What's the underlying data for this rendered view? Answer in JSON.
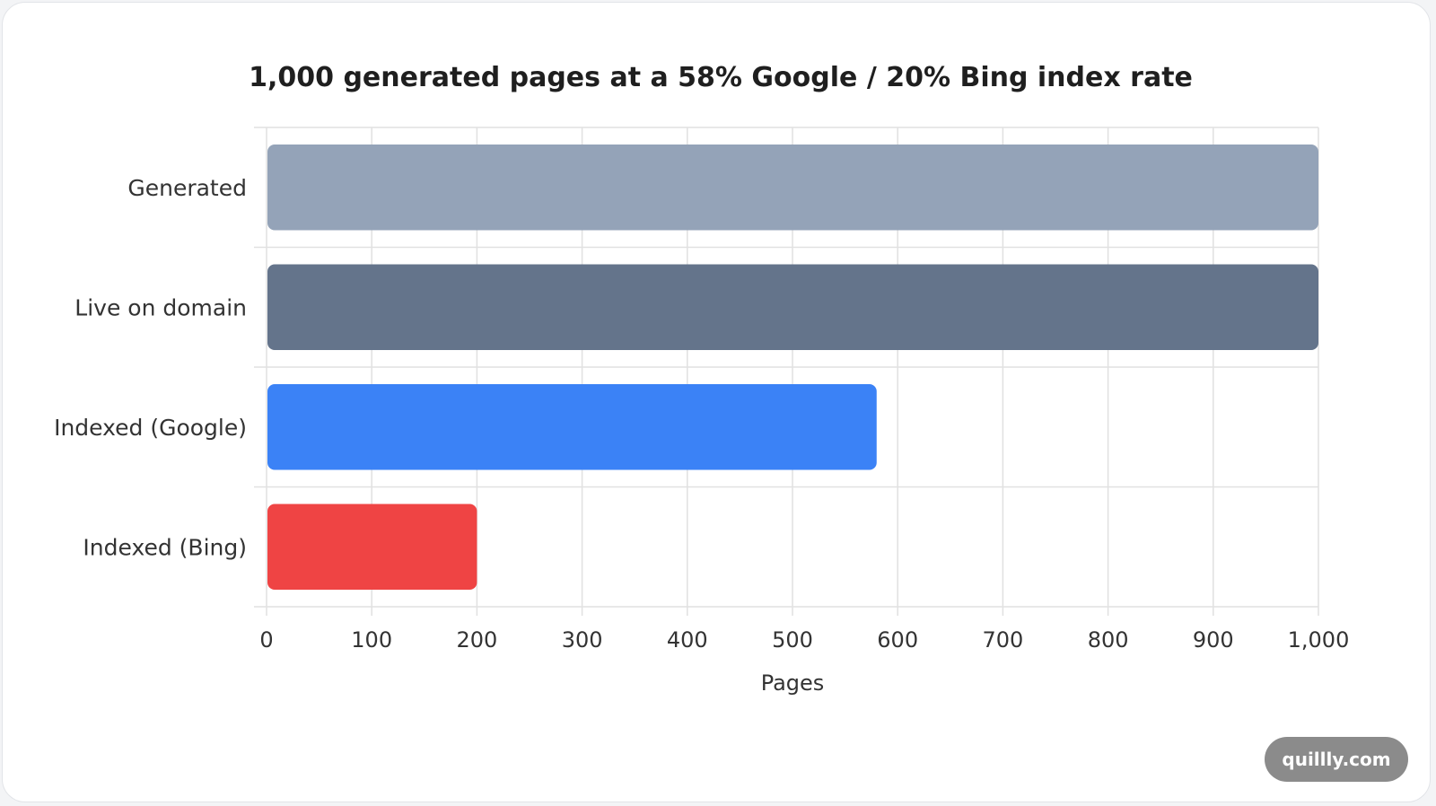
{
  "chart_data": {
    "type": "bar",
    "orientation": "horizontal",
    "title": "1,000 generated pages at a 58% Google / 20% Bing index rate",
    "xlabel": "Pages",
    "ylabel": "",
    "xlim": [
      0,
      1000
    ],
    "xticks": [
      0,
      100,
      200,
      300,
      400,
      500,
      600,
      700,
      800,
      900,
      1000
    ],
    "xtick_labels": [
      "0",
      "100",
      "200",
      "300",
      "400",
      "500",
      "600",
      "700",
      "800",
      "900",
      "1,000"
    ],
    "categories": [
      "Generated",
      "Live on domain",
      "Indexed (Google)",
      "Indexed (Bing)"
    ],
    "values": [
      1000,
      1000,
      580,
      200
    ],
    "colors": [
      "#94a3b8",
      "#64748b",
      "#3b82f6",
      "#ef4444"
    ],
    "grid": true,
    "legend": "none"
  },
  "watermark": {
    "label": "quillly.com"
  }
}
